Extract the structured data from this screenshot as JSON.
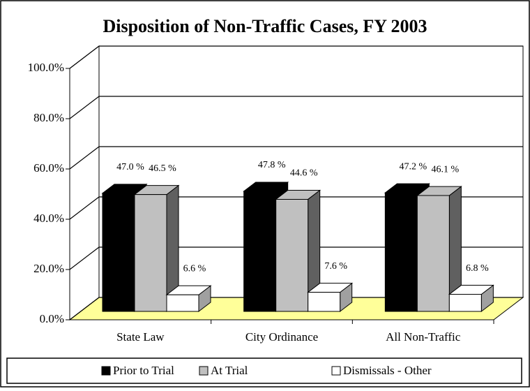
{
  "chart_data": {
    "type": "bar3d",
    "title": "Disposition of Non-Traffic Cases, FY 2003",
    "categories": [
      "State Law",
      "City Ordinance",
      "All Non-Traffic"
    ],
    "series": [
      {
        "name": "Prior to Trial",
        "color": "#000000",
        "values": [
          47.0,
          47.8,
          47.2
        ],
        "value_labels": [
          "47.0 %",
          "47.8 %",
          "47.2 %"
        ]
      },
      {
        "name": "At Trial",
        "color": "#c0c0c0",
        "values": [
          46.5,
          44.6,
          46.1
        ],
        "value_labels": [
          "46.5 %",
          "44.6 %",
          "46.1 %"
        ]
      },
      {
        "name": "Dismissals - Other",
        "color": "#ffffff",
        "values": [
          6.6,
          7.6,
          6.8
        ],
        "value_labels": [
          "6.6 %",
          "7.6 %",
          "6.8 %"
        ]
      }
    ],
    "ylim": [
      0,
      100
    ],
    "yticks": [
      {
        "value": 0,
        "label": "0.0%"
      },
      {
        "value": 20,
        "label": "20.0%"
      },
      {
        "value": 40,
        "label": "40.0%"
      },
      {
        "value": 60,
        "label": "60.0%"
      },
      {
        "value": 80,
        "label": "80.0%"
      },
      {
        "value": 100,
        "label": "100.0%"
      }
    ],
    "grid": true,
    "legend": "bottom"
  }
}
